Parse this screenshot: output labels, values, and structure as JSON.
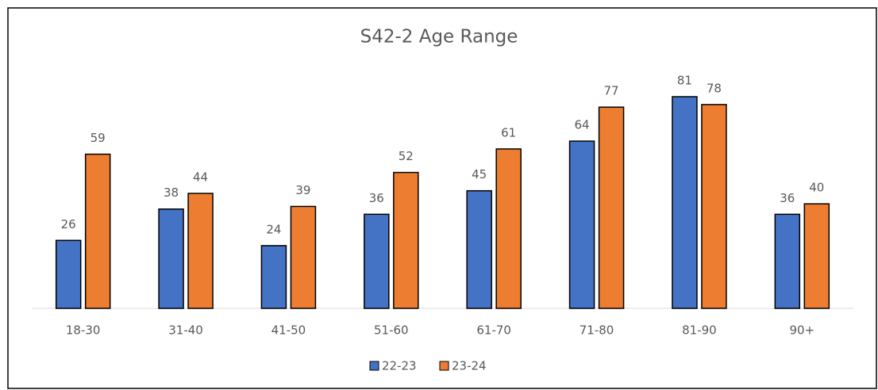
{
  "chart_data": {
    "type": "bar",
    "title": "S42-2 Age Range",
    "categories": [
      "18-30",
      "31-40",
      "41-50",
      "51-60",
      "61-70",
      "71-80",
      "81-90",
      "90+"
    ],
    "series": [
      {
        "name": "22-23",
        "color": "#4472c4",
        "values": [
          26,
          38,
          24,
          36,
          45,
          64,
          81,
          36
        ]
      },
      {
        "name": "23-24",
        "color": "#ed7d31",
        "values": [
          59,
          44,
          39,
          52,
          61,
          77,
          78,
          40
        ]
      }
    ]
  }
}
